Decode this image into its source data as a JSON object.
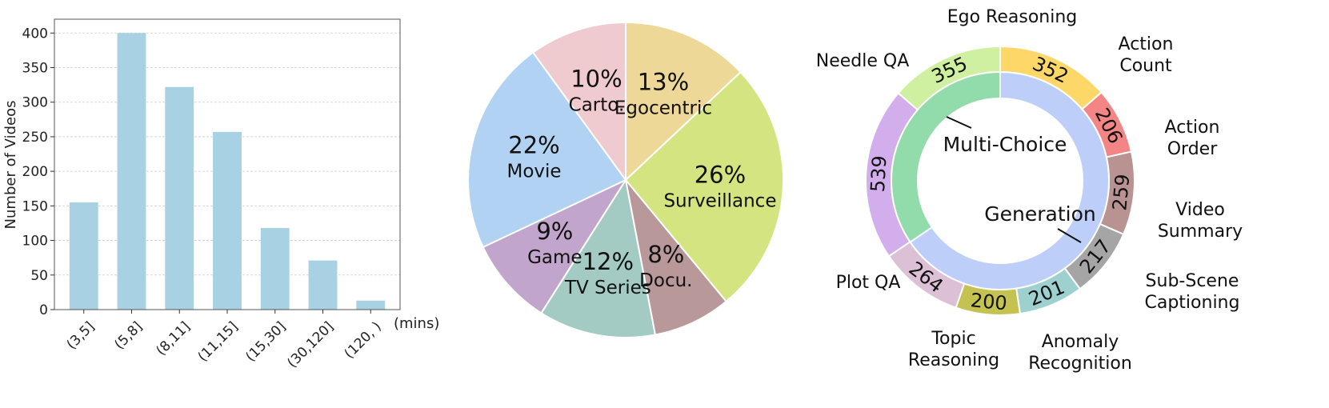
{
  "chart_data": [
    {
      "type": "bar",
      "categories": [
        "(3,5]",
        "(5,8]",
        "(8,11]",
        "(11,15]",
        "(15,30]",
        "(30,120]",
        "(120, )"
      ],
      "values": [
        155,
        400,
        322,
        257,
        118,
        71,
        13
      ],
      "xlabel": "(mins)",
      "ylabel": "Number of Videos",
      "ylim": [
        0,
        420
      ],
      "yticks": [
        0,
        50,
        100,
        150,
        200,
        250,
        300,
        350,
        400
      ],
      "grid": true,
      "color": "#a8d1e3"
    },
    {
      "type": "pie",
      "slices": [
        {
          "name": "Egocentric",
          "pct_label": "13%",
          "value": 13,
          "color": "#edd898"
        },
        {
          "name": "Surveillance",
          "pct_label": "26%",
          "value": 26,
          "color": "#d4e480"
        },
        {
          "name": "Docu.",
          "pct_label": "8%",
          "value": 8,
          "color": "#b89898"
        },
        {
          "name": "TV Series",
          "pct_label": "12%",
          "value": 12,
          "color": "#a3cbc3"
        },
        {
          "name": "Game",
          "pct_label": "9%",
          "value": 9,
          "color": "#c1a5cc"
        },
        {
          "name": "Movie",
          "pct_label": "22%",
          "value": 22,
          "color": "#b1d2f3"
        },
        {
          "name": "Carto.",
          "pct_label": "10%",
          "value": 10,
          "color": "#efcbd0"
        }
      ]
    },
    {
      "type": "donut",
      "inner": [
        {
          "name": "Multi-Choice",
          "value": 1172,
          "color": "#bdcff8"
        },
        {
          "name": "Generation",
          "value": 618,
          "color": "#92dcab"
        }
      ],
      "outer": [
        {
          "name": "Ego Reasoning",
          "value": 352,
          "color": "#fdd868"
        },
        {
          "name": "Action Count",
          "value": 206,
          "color": "#f38585"
        },
        {
          "name": "Action Order",
          "value": 259,
          "color": "#b99292"
        },
        {
          "name": "Video Summary",
          "value": 217,
          "color": "#a5a5a5"
        },
        {
          "name": "Sub-Scene Captioning",
          "value": 201,
          "color": "#9ed0d0"
        },
        {
          "name": "Anomaly Recognition",
          "value": 200,
          "color": "#c4c250"
        },
        {
          "name": "Topic Reasoning",
          "value": 264,
          "color": "#dcc0d6"
        },
        {
          "name": "Plot QA",
          "value": 539,
          "color": "#d3aeec"
        },
        {
          "name": "Needle QA",
          "value": 355,
          "color": "#cff0a0"
        }
      ]
    }
  ]
}
